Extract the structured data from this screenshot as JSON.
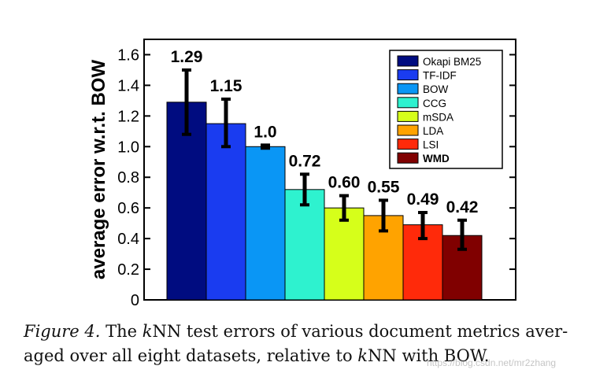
{
  "chart_data": {
    "type": "bar",
    "categories": [
      "Okapi BM25",
      "TF-IDF",
      "BOW",
      "CCG",
      "mSDA",
      "LDA",
      "LSI",
      "WMD"
    ],
    "values": [
      1.29,
      1.15,
      1.0,
      0.72,
      0.6,
      0.55,
      0.49,
      0.42
    ],
    "value_labels": [
      "1.29",
      "1.15",
      "1.0",
      "0.72",
      "0.60",
      "0.55",
      "0.49",
      "0.42"
    ],
    "error_low": [
      1.08,
      1.0,
      0.99,
      0.62,
      0.52,
      0.45,
      0.4,
      0.33
    ],
    "error_high": [
      1.5,
      1.31,
      1.01,
      0.82,
      0.68,
      0.65,
      0.57,
      0.52
    ],
    "colors": [
      "#000c80",
      "#1a3cf0",
      "#0a96f5",
      "#2ef2cf",
      "#d6ff1a",
      "#ffa300",
      "#ff2a0a",
      "#800000"
    ],
    "ylabel": "average error w.r.t. BOW",
    "xlabel": "",
    "ylim": [
      0,
      1.7
    ],
    "yticks": [
      0,
      0.2,
      0.4,
      0.6,
      0.8,
      1.0,
      1.2,
      1.4,
      1.6
    ],
    "ytick_labels": [
      "0",
      "0.2",
      "0.4",
      "0.6",
      "0.8",
      "1.0",
      "1.2",
      "1.4",
      "1.6"
    ],
    "legend_position": "top-right",
    "legend_bold": "WMD"
  },
  "caption": {
    "figure_label": "Figure 4.",
    "text_part1": " The ",
    "k1": "k",
    "text_part2": "NN test errors of various document metrics aver-",
    "text_part3": "aged over all eight datasets, relative to ",
    "k2": "k",
    "text_part4": "NN with BOW."
  },
  "watermark": "https://blog.csdn.net/mr2zhang"
}
